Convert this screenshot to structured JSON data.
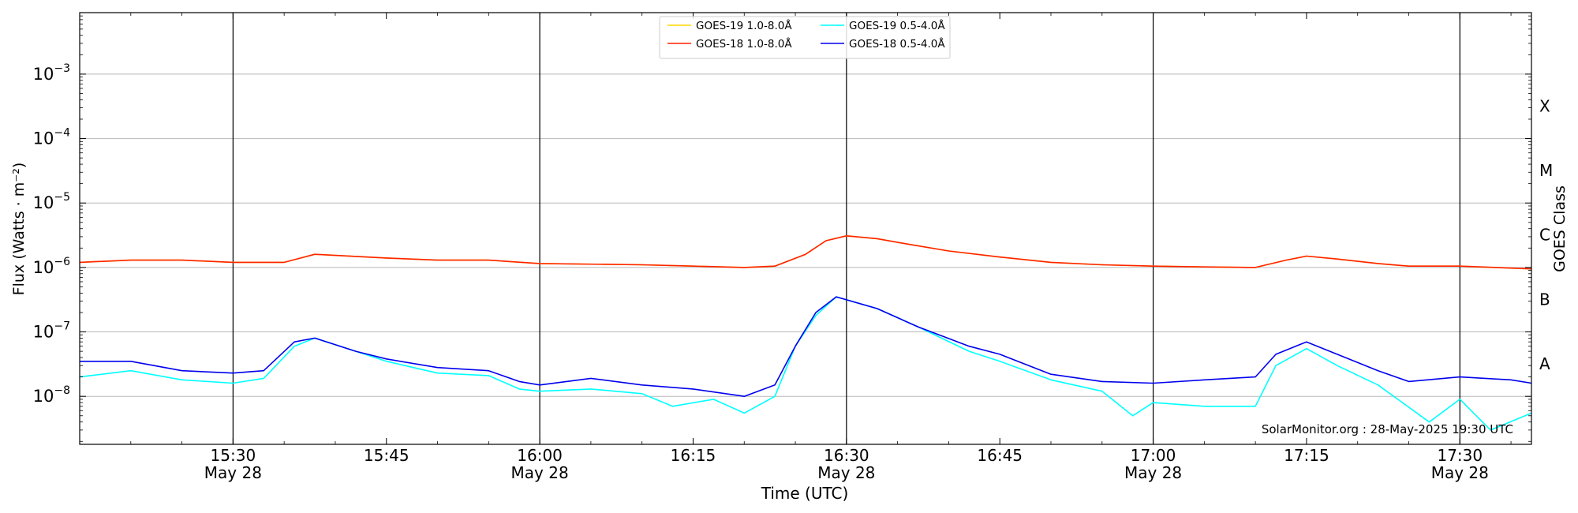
{
  "chart_data": {
    "type": "line",
    "title": "",
    "xlabel": "Time (UTC)",
    "ylabel": "Flux (Watts · m⁻²)",
    "y2label": "GOES Class",
    "yscale": "log",
    "ylim": [
      1.8e-09,
      0.009
    ],
    "xlim": [
      "15:15",
      "17:37"
    ],
    "grid": "horizontal",
    "legend": "top-center",
    "annotation": "SolarMonitor.org : 28-May-2025 19:30 UTC",
    "y_ticks": [
      {
        "value": 1e-08,
        "base": "10",
        "exp": "−8"
      },
      {
        "value": 1e-07,
        "base": "10",
        "exp": "−7"
      },
      {
        "value": 1e-06,
        "base": "10",
        "exp": "−6"
      },
      {
        "value": 1e-05,
        "base": "10",
        "exp": "−5"
      },
      {
        "value": 0.0001,
        "base": "10",
        "exp": "−4"
      },
      {
        "value": 0.001,
        "base": "10",
        "exp": "−3"
      }
    ],
    "x_ticks": [
      {
        "time": "15:30",
        "line1": "15:30",
        "line2": "May 28",
        "vline": true
      },
      {
        "time": "15:45",
        "line1": "15:45",
        "line2": "",
        "vline": false
      },
      {
        "time": "16:00",
        "line1": "16:00",
        "line2": "May 28",
        "vline": true
      },
      {
        "time": "16:15",
        "line1": "16:15",
        "line2": "",
        "vline": false
      },
      {
        "time": "16:30",
        "line1": "16:30",
        "line2": "May 28",
        "vline": true
      },
      {
        "time": "16:45",
        "line1": "16:45",
        "line2": "",
        "vline": false
      },
      {
        "time": "17:00",
        "line1": "17:00",
        "line2": "May 28",
        "vline": true
      },
      {
        "time": "17:15",
        "line1": "17:15",
        "line2": "",
        "vline": false
      },
      {
        "time": "17:30",
        "line1": "17:30",
        "line2": "May 28",
        "vline": true
      }
    ],
    "goes_classes": [
      {
        "label": "A",
        "value": 3.2e-08
      },
      {
        "label": "B",
        "value": 3.2e-07
      },
      {
        "label": "C",
        "value": 3.2e-06
      },
      {
        "label": "M",
        "value": 3.2e-05
      },
      {
        "label": "X",
        "value": 0.00032
      }
    ],
    "series": [
      {
        "name": "GOES-19 1.0-8.0Å",
        "color": "#ffd700",
        "points": [
          [
            "15:15",
            1.2e-06
          ],
          [
            "15:20",
            1.3e-06
          ],
          [
            "15:25",
            1.3e-06
          ],
          [
            "15:30",
            1.2e-06
          ],
          [
            "15:35",
            1.2e-06
          ],
          [
            "15:38",
            1.6e-06
          ],
          [
            "15:45",
            1.4e-06
          ],
          [
            "15:50",
            1.3e-06
          ],
          [
            "15:55",
            1.3e-06
          ],
          [
            "16:00",
            1.15e-06
          ],
          [
            "16:10",
            1.1e-06
          ],
          [
            "16:15",
            1.05e-06
          ],
          [
            "16:20",
            1e-06
          ],
          [
            "16:23",
            1.05e-06
          ],
          [
            "16:26",
            1.6e-06
          ],
          [
            "16:28",
            2.6e-06
          ],
          [
            "16:30",
            3.1e-06
          ],
          [
            "16:33",
            2.8e-06
          ],
          [
            "16:36",
            2.3e-06
          ],
          [
            "16:40",
            1.8e-06
          ],
          [
            "16:45",
            1.45e-06
          ],
          [
            "16:50",
            1.2e-06
          ],
          [
            "16:55",
            1.1e-06
          ],
          [
            "17:00",
            1.05e-06
          ],
          [
            "17:05",
            1.02e-06
          ],
          [
            "17:10",
            1e-06
          ],
          [
            "17:13",
            1.3e-06
          ],
          [
            "17:15",
            1.5e-06
          ],
          [
            "17:18",
            1.35e-06
          ],
          [
            "17:22",
            1.15e-06
          ],
          [
            "17:25",
            1.05e-06
          ],
          [
            "17:30",
            1.05e-06
          ],
          [
            "17:37",
            9.5e-07
          ]
        ]
      },
      {
        "name": "GOES-18 1.0-8.0Å",
        "color": "#ff2200",
        "points": [
          [
            "15:15",
            1.2e-06
          ],
          [
            "15:20",
            1.3e-06
          ],
          [
            "15:25",
            1.3e-06
          ],
          [
            "15:30",
            1.2e-06
          ],
          [
            "15:35",
            1.2e-06
          ],
          [
            "15:38",
            1.6e-06
          ],
          [
            "15:45",
            1.4e-06
          ],
          [
            "15:50",
            1.3e-06
          ],
          [
            "15:55",
            1.3e-06
          ],
          [
            "16:00",
            1.15e-06
          ],
          [
            "16:10",
            1.1e-06
          ],
          [
            "16:15",
            1.05e-06
          ],
          [
            "16:20",
            1e-06
          ],
          [
            "16:23",
            1.05e-06
          ],
          [
            "16:26",
            1.6e-06
          ],
          [
            "16:28",
            2.6e-06
          ],
          [
            "16:30",
            3.1e-06
          ],
          [
            "16:33",
            2.8e-06
          ],
          [
            "16:36",
            2.3e-06
          ],
          [
            "16:40",
            1.8e-06
          ],
          [
            "16:45",
            1.45e-06
          ],
          [
            "16:50",
            1.2e-06
          ],
          [
            "16:55",
            1.1e-06
          ],
          [
            "17:00",
            1.05e-06
          ],
          [
            "17:05",
            1.02e-06
          ],
          [
            "17:10",
            1e-06
          ],
          [
            "17:13",
            1.3e-06
          ],
          [
            "17:15",
            1.5e-06
          ],
          [
            "17:18",
            1.35e-06
          ],
          [
            "17:22",
            1.15e-06
          ],
          [
            "17:25",
            1.05e-06
          ],
          [
            "17:30",
            1.05e-06
          ],
          [
            "17:37",
            9.5e-07
          ]
        ]
      },
      {
        "name": "GOES-19 0.5-4.0Å",
        "color": "#00ffff",
        "points": [
          [
            "15:15",
            2e-08
          ],
          [
            "15:20",
            2.5e-08
          ],
          [
            "15:25",
            1.8e-08
          ],
          [
            "15:30",
            1.6e-08
          ],
          [
            "15:33",
            1.9e-08
          ],
          [
            "15:36",
            6e-08
          ],
          [
            "15:38",
            8e-08
          ],
          [
            "15:42",
            5e-08
          ],
          [
            "15:45",
            3.5e-08
          ],
          [
            "15:50",
            2.3e-08
          ],
          [
            "15:55",
            2.1e-08
          ],
          [
            "15:58",
            1.3e-08
          ],
          [
            "16:00",
            1.2e-08
          ],
          [
            "16:05",
            1.3e-08
          ],
          [
            "16:10",
            1.1e-08
          ],
          [
            "16:13",
            7e-09
          ],
          [
            "16:17",
            9e-09
          ],
          [
            "16:20",
            5.5e-09
          ],
          [
            "16:23",
            1e-08
          ],
          [
            "16:25",
            6e-08
          ],
          [
            "16:27",
            1.8e-07
          ],
          [
            "16:29",
            3.5e-07
          ],
          [
            "16:33",
            2.3e-07
          ],
          [
            "16:37",
            1.2e-07
          ],
          [
            "16:42",
            5e-08
          ],
          [
            "16:45",
            3.5e-08
          ],
          [
            "16:50",
            1.8e-08
          ],
          [
            "16:55",
            1.2e-08
          ],
          [
            "16:58",
            5e-09
          ],
          [
            "17:00",
            8e-09
          ],
          [
            "17:05",
            7e-09
          ],
          [
            "17:10",
            7e-09
          ],
          [
            "17:12",
            3e-08
          ],
          [
            "17:15",
            5.5e-08
          ],
          [
            "17:18",
            3e-08
          ],
          [
            "17:22",
            1.5e-08
          ],
          [
            "17:27",
            4e-09
          ],
          [
            "17:30",
            9e-09
          ],
          [
            "17:33",
            3e-09
          ],
          [
            "17:37",
            5.5e-09
          ]
        ]
      },
      {
        "name": "GOES-18 0.5-4.0Å",
        "color": "#0000ee",
        "points": [
          [
            "15:15",
            3.5e-08
          ],
          [
            "15:20",
            3.5e-08
          ],
          [
            "15:25",
            2.5e-08
          ],
          [
            "15:30",
            2.3e-08
          ],
          [
            "15:33",
            2.5e-08
          ],
          [
            "15:36",
            7e-08
          ],
          [
            "15:38",
            8e-08
          ],
          [
            "15:42",
            5e-08
          ],
          [
            "15:45",
            3.8e-08
          ],
          [
            "15:50",
            2.8e-08
          ],
          [
            "15:55",
            2.5e-08
          ],
          [
            "15:58",
            1.7e-08
          ],
          [
            "16:00",
            1.5e-08
          ],
          [
            "16:05",
            1.9e-08
          ],
          [
            "16:10",
            1.5e-08
          ],
          [
            "16:15",
            1.3e-08
          ],
          [
            "16:20",
            1e-08
          ],
          [
            "16:23",
            1.5e-08
          ],
          [
            "16:25",
            6e-08
          ],
          [
            "16:27",
            2e-07
          ],
          [
            "16:29",
            3.5e-07
          ],
          [
            "16:33",
            2.3e-07
          ],
          [
            "16:37",
            1.2e-07
          ],
          [
            "16:42",
            6e-08
          ],
          [
            "16:45",
            4.5e-08
          ],
          [
            "16:50",
            2.2e-08
          ],
          [
            "16:55",
            1.7e-08
          ],
          [
            "17:00",
            1.6e-08
          ],
          [
            "17:05",
            1.8e-08
          ],
          [
            "17:10",
            2e-08
          ],
          [
            "17:12",
            4.5e-08
          ],
          [
            "17:15",
            7e-08
          ],
          [
            "17:18",
            4.5e-08
          ],
          [
            "17:22",
            2.5e-08
          ],
          [
            "17:25",
            1.7e-08
          ],
          [
            "17:30",
            2e-08
          ],
          [
            "17:35",
            1.8e-08
          ],
          [
            "17:37",
            1.6e-08
          ]
        ]
      }
    ]
  }
}
